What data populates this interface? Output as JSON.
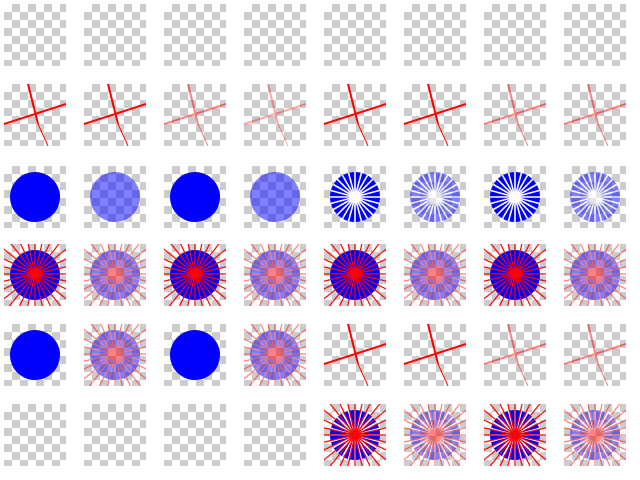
{
  "colors": {
    "circle": "#0000ff",
    "lines": "#ff0000",
    "spokes_on_circle": "#ffffff",
    "checker_dark": "#cccccc",
    "checker_light": "#ffffff"
  },
  "rows": [
    [
      "empty",
      "empty",
      "empty",
      "empty",
      "empty",
      "empty",
      "empty",
      "empty"
    ],
    [
      "cross",
      "cross",
      "cross",
      "cross",
      "cross",
      "cross",
      "cross",
      "cross"
    ],
    [
      "circle",
      "circle",
      "circle",
      "circle",
      "circle-spokes-white",
      "circle-spokes-white",
      "circle-spokes-white",
      "circle-spokes-white"
    ],
    [
      "circle-burst-red",
      "circle-burst-red",
      "circle-burst-red",
      "circle-burst-red",
      "circle-burst-red",
      "circle-burst-red",
      "circle-burst-red",
      "circle-burst-red"
    ],
    [
      "circle",
      "circle-burst-red",
      "circle",
      "circle-burst-red",
      "cross",
      "cross",
      "cross",
      "cross"
    ],
    [
      "empty",
      "empty",
      "empty",
      "empty",
      "circle-spokes-white-burst",
      "circle-spokes-white-burst",
      "circle-spokes-white-burst",
      "circle-spokes-white-burst"
    ]
  ],
  "opacity": [
    [
      1,
      1,
      1,
      1,
      1,
      1,
      1,
      1
    ],
    [
      1,
      1,
      0.5,
      0.35,
      1,
      1,
      0.5,
      0.5
    ],
    [
      1,
      0.5,
      1,
      0.5,
      1,
      0.5,
      1,
      0.5
    ],
    [
      1,
      0.5,
      1,
      0.5,
      1,
      0.5,
      1,
      0.5
    ],
    [
      1,
      0.5,
      1,
      0.5,
      1,
      1,
      0.5,
      0.5
    ],
    [
      1,
      1,
      1,
      1,
      1,
      0.5,
      1,
      0.5
    ]
  ]
}
